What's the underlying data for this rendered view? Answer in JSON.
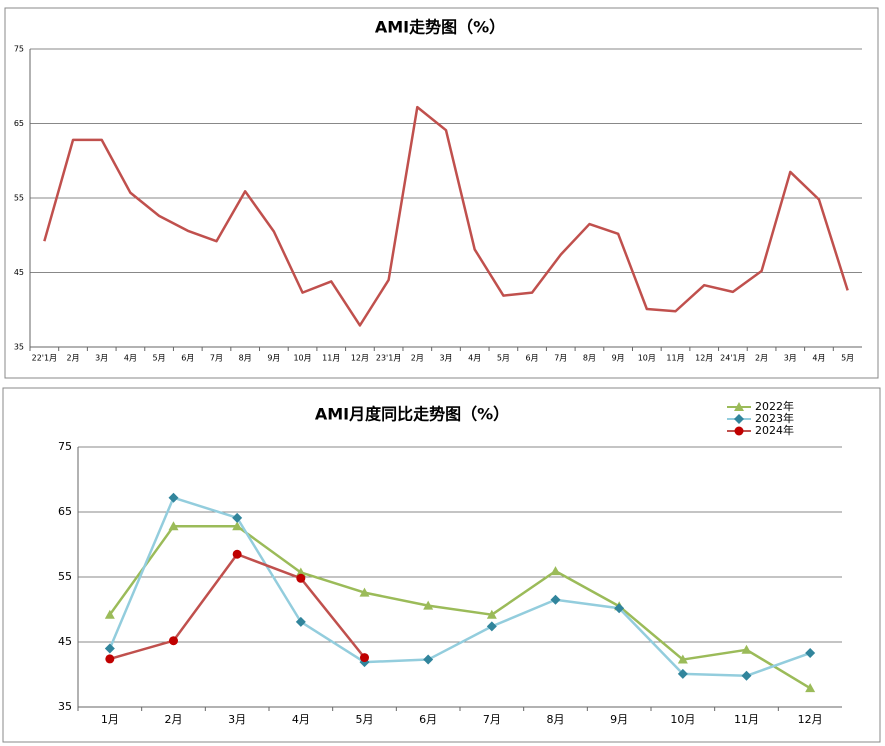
{
  "chart_data": [
    {
      "type": "line",
      "title": "AMI走势图（%）",
      "categories": [
        "22'1月",
        "2月",
        "3月",
        "4月",
        "5月",
        "6月",
        "7月",
        "8月",
        "9月",
        "10月",
        "11月",
        "12月",
        "23'1月",
        "2月",
        "3月",
        "4月",
        "5月",
        "6月",
        "7月",
        "8月",
        "9月",
        "10月",
        "11月",
        "12月",
        "24'1月",
        "2月",
        "3月",
        "4月",
        "5月"
      ],
      "values": [
        49.2,
        62.8,
        62.8,
        55.7,
        52.6,
        50.6,
        49.2,
        55.9,
        50.5,
        42.3,
        43.8,
        37.9,
        44.0,
        67.2,
        64.1,
        48.1,
        41.9,
        42.3,
        47.4,
        51.5,
        50.2,
        40.1,
        39.8,
        43.3,
        42.4,
        45.2,
        58.5,
        54.8,
        42.6
      ],
      "color": "#c0504d",
      "ylim": [
        35,
        75
      ],
      "yticks": [
        35,
        45,
        55,
        65,
        75
      ],
      "grid": true
    },
    {
      "type": "line",
      "title": "AMI月度同比走势图（%）",
      "categories": [
        "1月",
        "2月",
        "3月",
        "4月",
        "5月",
        "6月",
        "7月",
        "8月",
        "9月",
        "10月",
        "11月",
        "12月"
      ],
      "series": [
        {
          "name": "2022年",
          "color": "#9bbb59",
          "marker": "triangle",
          "marker_color": "#9bbb59",
          "values": [
            49.2,
            62.8,
            62.8,
            55.7,
            52.6,
            50.6,
            49.2,
            55.9,
            50.5,
            42.3,
            43.8,
            37.9
          ]
        },
        {
          "name": "2023年",
          "color": "#93cddd",
          "marker": "diamond",
          "marker_color": "#31859c",
          "values": [
            44.0,
            67.2,
            64.1,
            48.1,
            41.9,
            42.3,
            47.4,
            51.5,
            50.2,
            40.1,
            39.8,
            43.3
          ]
        },
        {
          "name": "2024年",
          "color": "#c0504d",
          "marker": "circle",
          "marker_color": "#c00000",
          "values": [
            42.4,
            45.2,
            58.5,
            54.8,
            42.6,
            null,
            null,
            null,
            null,
            null,
            null,
            null
          ]
        }
      ],
      "ylim": [
        35,
        75
      ],
      "yticks": [
        35,
        45,
        55,
        65,
        75
      ],
      "grid": true,
      "legend": "top-right"
    }
  ]
}
